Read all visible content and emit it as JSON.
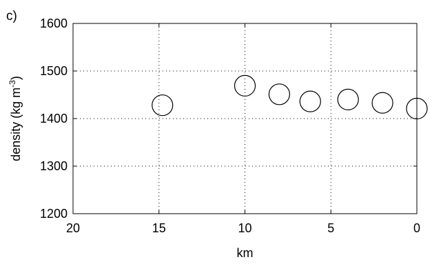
{
  "chart_data": {
    "type": "scatter",
    "panel_label": "c)",
    "xlabel": "km",
    "ylabel": "density (kg m",
    "ylabel_superscript": "-3",
    "ylabel_close": ")",
    "xlim": [
      20,
      0
    ],
    "ylim": [
      1200,
      1600
    ],
    "x_reversed": true,
    "xticks": [
      20,
      15,
      10,
      5,
      0
    ],
    "xtick_labels": [
      "20",
      "15",
      "10",
      "5",
      "0"
    ],
    "yticks": [
      1200,
      1300,
      1400,
      1500,
      1600
    ],
    "ytick_labels": [
      "1200",
      "1300",
      "1400",
      "1500",
      "1600"
    ],
    "grid": true,
    "grid_style": "dotted",
    "marker": "open-circle",
    "colors": {
      "axes": "#000000",
      "marker_stroke": "#000000",
      "background": "#ffffff"
    },
    "series": [
      {
        "x": [
          14.8,
          10.0,
          8.0,
          6.2,
          4.0,
          2.0,
          0.0
        ],
        "y": [
          1428,
          1469,
          1451,
          1436,
          1440,
          1433,
          1421
        ]
      }
    ]
  }
}
